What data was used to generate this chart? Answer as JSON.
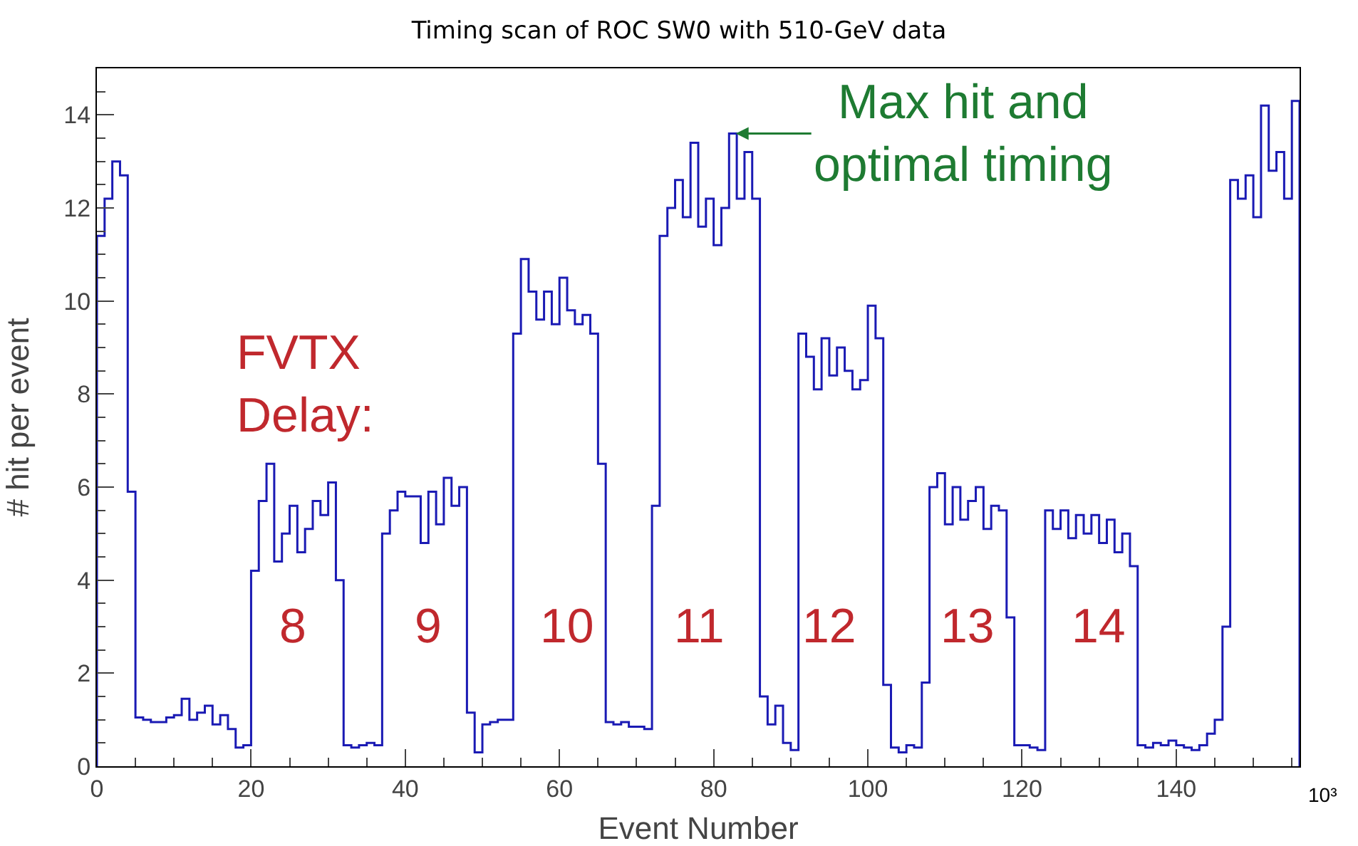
{
  "chart_data": {
    "type": "histogram",
    "title": "Timing scan of ROC SW0 with 510-GeV data",
    "xlabel": "Event Number",
    "ylabel": "# hit per event",
    "bins": [
      0,
      1,
      2,
      3,
      4,
      5,
      6,
      7,
      8,
      9,
      10,
      11,
      12,
      13,
      14,
      15,
      16,
      17,
      18,
      19,
      20,
      21,
      22,
      23,
      24,
      25,
      26,
      27,
      28,
      29,
      30,
      31,
      32,
      33,
      34,
      35,
      36,
      37,
      38,
      39,
      40,
      41,
      42,
      43,
      44,
      45,
      46,
      47,
      48,
      49,
      50,
      51,
      52,
      53,
      54,
      55,
      56,
      57,
      58,
      59,
      60,
      61,
      62,
      63,
      64,
      65,
      66,
      67,
      68,
      69,
      70,
      71,
      72,
      73,
      74,
      75,
      76,
      77,
      78,
      79,
      80,
      81,
      82,
      83,
      84,
      85,
      86,
      87,
      88,
      89,
      90,
      91,
      92,
      93,
      94,
      95,
      96,
      97,
      98,
      99,
      100,
      101,
      102,
      103,
      104,
      105,
      106,
      107,
      108,
      109,
      110,
      111,
      112,
      113,
      114,
      115,
      116,
      117,
      118,
      119,
      120,
      121,
      122,
      123,
      124,
      125,
      126,
      127,
      128,
      129,
      130,
      131,
      132,
      133,
      134,
      135,
      136,
      137,
      138,
      139,
      140,
      141,
      142,
      143,
      144,
      145,
      146,
      147,
      148,
      149,
      150,
      151,
      152,
      153,
      154,
      155,
      156
    ],
    "values": [
      11.4,
      12.2,
      13.0,
      12.7,
      5.9,
      1.05,
      1.0,
      0.95,
      0.95,
      1.05,
      1.1,
      1.45,
      1.0,
      1.15,
      1.3,
      0.9,
      1.1,
      0.8,
      0.4,
      0.45,
      4.2,
      5.7,
      6.5,
      4.4,
      5.0,
      5.6,
      4.6,
      5.1,
      5.7,
      5.4,
      6.1,
      4.0,
      0.45,
      0.4,
      0.45,
      0.5,
      0.45,
      5.0,
      5.5,
      5.9,
      5.8,
      5.8,
      4.8,
      5.9,
      5.2,
      6.2,
      5.6,
      6.0,
      1.15,
      0.3,
      0.9,
      0.95,
      1.0,
      1.0,
      9.3,
      10.9,
      10.2,
      9.6,
      10.2,
      9.5,
      10.5,
      9.8,
      9.5,
      9.7,
      9.3,
      6.5,
      0.95,
      0.9,
      0.95,
      0.85,
      0.85,
      0.8,
      5.6,
      11.4,
      12.0,
      12.6,
      11.8,
      13.4,
      11.6,
      12.2,
      11.2,
      12.0,
      13.6,
      12.2,
      13.2,
      12.2,
      1.5,
      0.9,
      1.3,
      0.5,
      0.35,
      9.3,
      8.8,
      8.1,
      9.2,
      8.4,
      9.0,
      8.5,
      8.1,
      8.3,
      9.9,
      9.2,
      1.75,
      0.4,
      0.3,
      0.45,
      0.4,
      1.8,
      6.0,
      6.3,
      5.2,
      6.0,
      5.3,
      5.7,
      6.0,
      5.1,
      5.6,
      5.5,
      3.2,
      0.45,
      0.45,
      0.4,
      0.35,
      5.5,
      5.1,
      5.5,
      4.9,
      5.4,
      5.0,
      5.4,
      4.8,
      5.3,
      4.6,
      5.0,
      4.3,
      0.45,
      0.4,
      0.5,
      0.45,
      0.55,
      0.45,
      0.4,
      0.35,
      0.45,
      0.7,
      1.0,
      3.0,
      12.6,
      12.2,
      12.7,
      11.8,
      14.2,
      12.8,
      13.2,
      12.2,
      14.3
    ],
    "color": "#1a1ab4",
    "xlim": [
      0,
      156
    ],
    "xticks": [
      0,
      20,
      40,
      60,
      80,
      100,
      120,
      140
    ],
    "ylim": [
      0,
      15
    ],
    "yticks": [
      0,
      2,
      4,
      6,
      8,
      10,
      12,
      14
    ],
    "grid": false,
    "annotations": [
      "FVTX\nDelay:",
      "8",
      "9",
      "10",
      "11",
      "12",
      "13",
      "14",
      {
        "text": "Max hit and\noptimal timing",
        "x": 82.5,
        "y": 13.6
      },
      "10³"
    ]
  }
}
